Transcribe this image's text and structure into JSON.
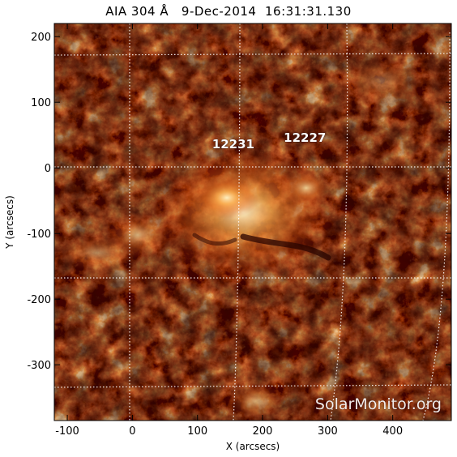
{
  "title": "AIA 304 Å   9-Dec-2014  16:31:31.130",
  "axes": {
    "x_label": "X (arcsecs)",
    "y_label": "Y (arcsecs)",
    "x_ticks": [
      "-100",
      "0",
      "100",
      "200",
      "300",
      "400"
    ],
    "y_ticks": [
      "200",
      "100",
      "0",
      "-100",
      "-200",
      "-300"
    ],
    "x_range": [
      -120,
      490
    ],
    "y_range": [
      -385,
      220
    ]
  },
  "active_regions": [
    {
      "number": "12231",
      "x": 155,
      "y": 30
    },
    {
      "number": "12227",
      "x": 265,
      "y": 40
    }
  ],
  "watermark": "SolarMonitor.org",
  "colors": {
    "image_dark": "#1e0200",
    "image_mid": "#b8300a",
    "image_bright": "#ffe8a8",
    "grid": "#ffffff"
  }
}
